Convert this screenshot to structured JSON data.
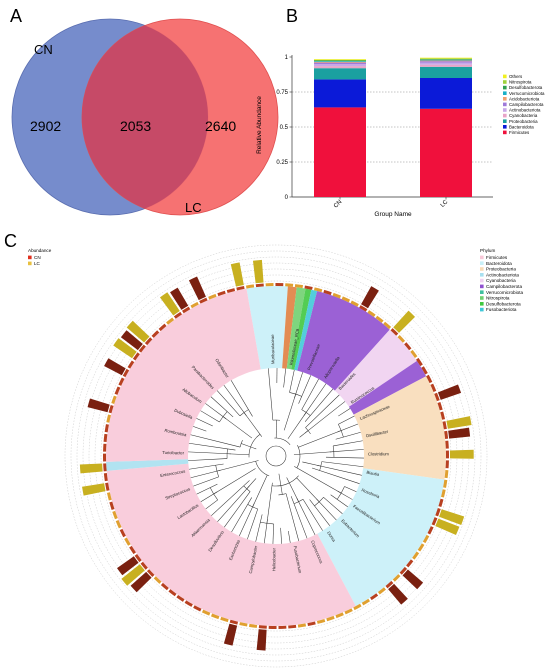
{
  "panels": {
    "a": "A",
    "b": "B",
    "c": "C"
  },
  "venn": {
    "set_a": {
      "label": "CN",
      "color": "#6f86c9"
    },
    "set_b": {
      "label": "LC",
      "color": "#f66a6a"
    },
    "overlap_color": "#c64a67",
    "values": {
      "only_a": "2902",
      "both": "2053",
      "only_b": "2640"
    }
  },
  "chart_data": [
    {
      "type": "bar",
      "stacked": true,
      "categories": [
        "CN",
        "LC"
      ],
      "xlabel": "Group Name",
      "ylabel": "Relative Abundance",
      "ylim": [
        0,
        1
      ],
      "yticks": [
        "0",
        "0.25",
        "0.5",
        "0.75",
        "1"
      ],
      "grid": "dashed horizontal at 0.25, 0.5, 0.75",
      "legend_position": "right",
      "series": [
        {
          "name": "Firmicutes",
          "color": "#f0103c",
          "values": [
            0.64,
            0.63
          ]
        },
        {
          "name": "Bacteroidota",
          "color": "#0b1ad8",
          "values": [
            0.2,
            0.22
          ]
        },
        {
          "name": "Proteobacteria",
          "color": "#1aa0a0",
          "values": [
            0.08,
            0.08
          ]
        },
        {
          "name": "Cyanobacteria",
          "color": "#e8a4c8",
          "values": [
            0.015,
            0.015
          ]
        },
        {
          "name": "Actinobacteriota",
          "color": "#c8a8e8",
          "values": [
            0.015,
            0.015
          ]
        },
        {
          "name": "Campilobacterota",
          "color": "#9f79d9",
          "values": [
            0.01,
            0.01
          ]
        },
        {
          "name": "Acidobacteriota",
          "color": "#f0a070",
          "values": [
            0.005,
            0.005
          ]
        },
        {
          "name": "Verrucomicrobiota",
          "color": "#18b0c8",
          "values": [
            0.005,
            0.005
          ]
        },
        {
          "name": "Desulfobacterota",
          "color": "#30a050",
          "values": [
            0.005,
            0.005
          ]
        },
        {
          "name": "Nitrospirota",
          "color": "#9fd23c",
          "values": [
            0.005,
            0.005
          ]
        },
        {
          "name": "Others",
          "color": "#f0f020",
          "values": [
            0.005,
            0.005
          ]
        }
      ]
    },
    {
      "type": "circular-tree",
      "abundance_legend": {
        "title": "Abundance",
        "items": [
          {
            "name": "CN",
            "color": "#e0301e"
          },
          {
            "name": "LC",
            "color": "#e8c040"
          }
        ]
      },
      "phylum_legend": {
        "title": "Phylum",
        "items": [
          {
            "name": "Firmicutes",
            "color": "#f8c8d8"
          },
          {
            "name": "Bacteroidota",
            "color": "#c8f0f8"
          },
          {
            "name": "Proteobacteria",
            "color": "#f8dcb8"
          },
          {
            "name": "Actinobacteriota",
            "color": "#a8e0f0"
          },
          {
            "name": "Cyanobacteria",
            "color": "#f0d0f0"
          },
          {
            "name": "Campilobacterota",
            "color": "#9050d0"
          },
          {
            "name": "Verrucomicrobiota",
            "color": "#40c0a0"
          },
          {
            "name": "Nitrospirota",
            "color": "#70d070"
          },
          {
            "name": "Desulfobacterota",
            "color": "#40c840"
          },
          {
            "name": "Fusobacteriota",
            "color": "#40c8d8"
          }
        ]
      },
      "sectors": [
        {
          "phylum": "Bacteroidota",
          "start": -10,
          "end": 4,
          "color": "#c8f0f8"
        },
        {
          "phylum": "Actinobacteriota",
          "start": 4,
          "end": 7,
          "color": "#e08040"
        },
        {
          "phylum": "Nitrospirota",
          "start": 7,
          "end": 10,
          "color": "#70d070"
        },
        {
          "phylum": "Desulfobacterota",
          "start": 10,
          "end": 12,
          "color": "#40c840"
        },
        {
          "phylum": "Fusobacteriota",
          "start": 12,
          "end": 14,
          "color": "#40c8d8"
        },
        {
          "phylum": "Campilobacterota",
          "start": 14,
          "end": 42,
          "color": "#9050d0"
        },
        {
          "phylum": "Cyanobacteria",
          "start": 42,
          "end": 56,
          "color": "#f0d0f0"
        },
        {
          "phylum": "Campilobacterota",
          "start": 56,
          "end": 62,
          "color": "#9050d0"
        },
        {
          "phylum": "Proteobacteria",
          "start": 62,
          "end": 98,
          "color": "#f8dcb8"
        },
        {
          "phylum": "Bacteroidota",
          "start": 98,
          "end": 152,
          "color": "#c8f0f8"
        },
        {
          "phylum": "Firmicutes",
          "start": 152,
          "end": 265,
          "color": "#f8c8d8"
        },
        {
          "phylum": "Actinobacteriota",
          "start": 265,
          "end": 268,
          "color": "#a8e0f0"
        },
        {
          "phylum": "Firmicutes",
          "start": 268,
          "end": 350,
          "color": "#f8c8d8"
        }
      ],
      "leaves": [
        "Muribaculaceae",
        "Rikenellaceae_RC9",
        "Prevotellaceae",
        "Alloprevotella",
        "Bacteroides",
        "Ruminococcus",
        "Lachnospiraceae",
        "Oscillibacter",
        "Clostridium",
        "Blautia",
        "Roseburia",
        "Faecalibacterium",
        "Eubacterium",
        "Dorea",
        "Coprococcus",
        "Fusobacterium",
        "Helicobacter",
        "Campylobacter",
        "Escherichia",
        "Desulfovibrio",
        "Akkermansia",
        "Lactobacillus",
        "Streptococcus",
        "Enterococcus",
        "Turicibacter",
        "Romboutsia",
        "Dubosiella",
        "Allobaculum",
        "Parabacteroides",
        "Odoribacter"
      ]
    }
  ]
}
